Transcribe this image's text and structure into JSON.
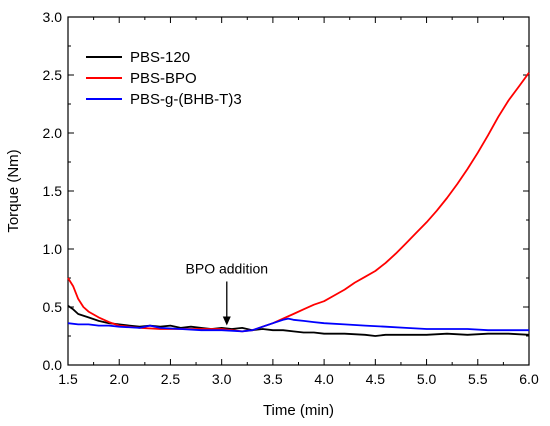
{
  "chart_data": {
    "type": "line",
    "title": "",
    "xlabel": "Time (min)",
    "ylabel": "Torque (Nm)",
    "xlim": [
      1.5,
      6.0
    ],
    "ylim": [
      0.0,
      3.0
    ],
    "xticks": [
      1.5,
      2.0,
      2.5,
      3.0,
      3.5,
      4.0,
      4.5,
      5.0,
      5.5,
      6.0
    ],
    "xtick_labels": [
      "1.5",
      "2.0",
      "2.5",
      "3.0",
      "3.5",
      "4.0",
      "4.5",
      "5.0",
      "5.5",
      "6.0"
    ],
    "yticks": [
      0.0,
      0.5,
      1.0,
      1.5,
      2.0,
      2.5,
      3.0
    ],
    "ytick_labels": [
      "0.0",
      "0.5",
      "1.0",
      "1.5",
      "2.0",
      "2.5",
      "3.0"
    ],
    "grid": false,
    "legend_position": "top-left",
    "series": [
      {
        "name": "PBS-120",
        "color": "#000000",
        "x": [
          1.5,
          1.55,
          1.6,
          1.7,
          1.8,
          1.9,
          2.0,
          2.1,
          2.2,
          2.3,
          2.4,
          2.5,
          2.6,
          2.7,
          2.8,
          2.9,
          3.0,
          3.1,
          3.2,
          3.3,
          3.4,
          3.5,
          3.6,
          3.7,
          3.8,
          3.9,
          4.0,
          4.2,
          4.4,
          4.5,
          4.6,
          4.8,
          5.0,
          5.2,
          5.4,
          5.6,
          5.8,
          6.0
        ],
        "y": [
          0.51,
          0.48,
          0.44,
          0.41,
          0.38,
          0.36,
          0.35,
          0.34,
          0.33,
          0.34,
          0.33,
          0.34,
          0.32,
          0.33,
          0.32,
          0.31,
          0.32,
          0.31,
          0.32,
          0.3,
          0.31,
          0.3,
          0.3,
          0.29,
          0.28,
          0.28,
          0.27,
          0.27,
          0.26,
          0.25,
          0.26,
          0.26,
          0.26,
          0.27,
          0.26,
          0.27,
          0.27,
          0.26
        ]
      },
      {
        "name": "PBS-BPO",
        "color": "#ff0000",
        "x": [
          1.5,
          1.55,
          1.6,
          1.65,
          1.7,
          1.8,
          1.9,
          2.0,
          2.2,
          2.4,
          2.6,
          2.8,
          3.0,
          3.1,
          3.2,
          3.3,
          3.4,
          3.5,
          3.6,
          3.7,
          3.8,
          3.9,
          4.0,
          4.1,
          4.2,
          4.3,
          4.4,
          4.5,
          4.6,
          4.7,
          4.8,
          4.9,
          5.0,
          5.1,
          5.2,
          5.3,
          5.4,
          5.5,
          5.6,
          5.7,
          5.8,
          5.9,
          6.0
        ],
        "y": [
          0.75,
          0.68,
          0.57,
          0.5,
          0.46,
          0.41,
          0.37,
          0.34,
          0.32,
          0.31,
          0.31,
          0.31,
          0.31,
          0.3,
          0.29,
          0.3,
          0.33,
          0.36,
          0.4,
          0.44,
          0.48,
          0.52,
          0.55,
          0.6,
          0.65,
          0.71,
          0.76,
          0.81,
          0.88,
          0.96,
          1.05,
          1.14,
          1.23,
          1.33,
          1.44,
          1.56,
          1.69,
          1.83,
          1.98,
          2.14,
          2.28,
          2.4,
          2.52
        ]
      },
      {
        "name": "PBS-g-(BHB-T)3",
        "color": "#0000ff",
        "x": [
          1.5,
          1.6,
          1.7,
          1.8,
          1.9,
          2.0,
          2.2,
          2.3,
          2.4,
          2.6,
          2.8,
          3.0,
          3.2,
          3.3,
          3.4,
          3.5,
          3.6,
          3.65,
          3.7,
          3.8,
          3.9,
          4.0,
          4.2,
          4.4,
          4.6,
          4.8,
          5.0,
          5.2,
          5.4,
          5.6,
          5.8,
          6.0
        ],
        "y": [
          0.36,
          0.35,
          0.35,
          0.34,
          0.34,
          0.33,
          0.32,
          0.34,
          0.32,
          0.31,
          0.3,
          0.3,
          0.29,
          0.3,
          0.33,
          0.36,
          0.39,
          0.4,
          0.39,
          0.38,
          0.37,
          0.36,
          0.35,
          0.34,
          0.33,
          0.32,
          0.31,
          0.31,
          0.31,
          0.3,
          0.3,
          0.3
        ]
      }
    ],
    "annotations": [
      {
        "text": "BPO addition",
        "x": 3.05,
        "arrow_from_y": 0.72,
        "arrow_to_y": 0.34
      }
    ]
  }
}
